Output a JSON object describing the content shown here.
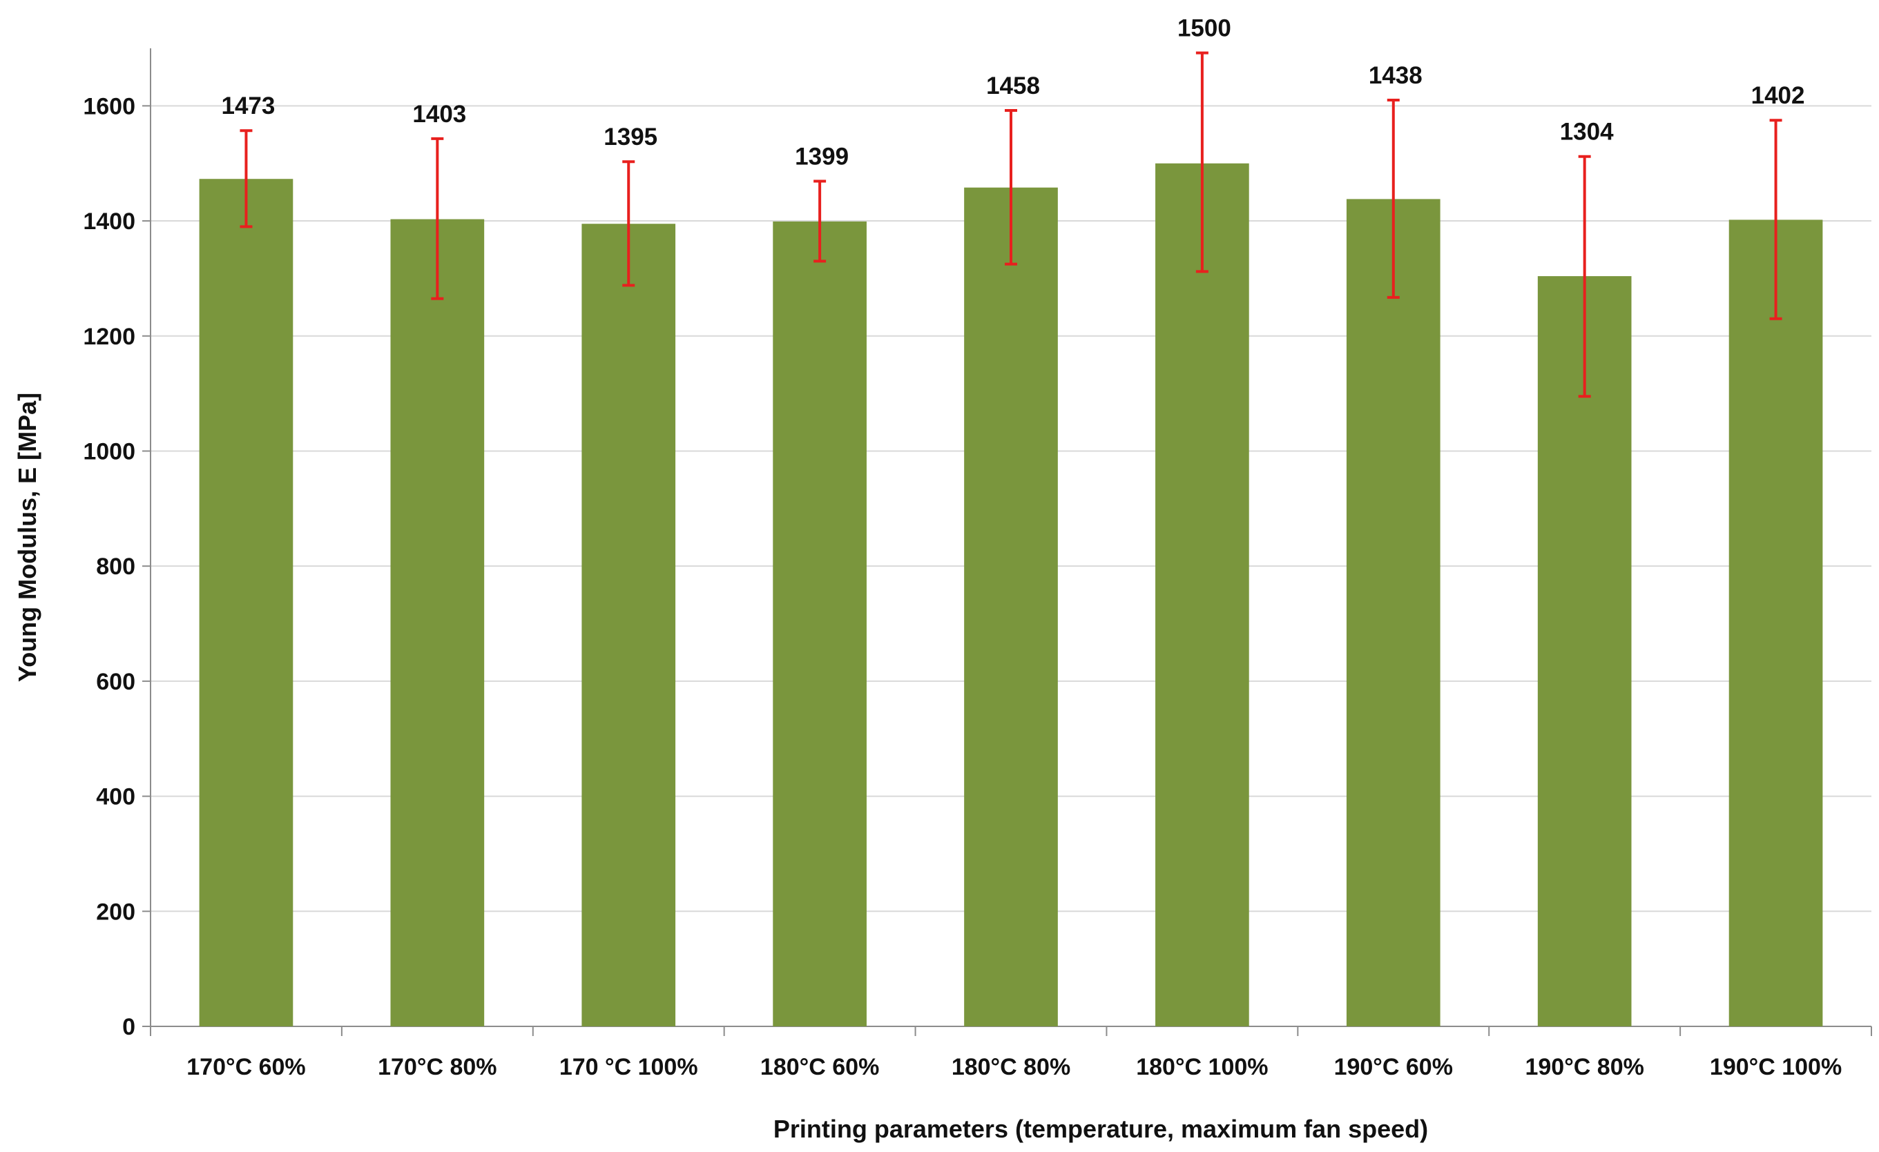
{
  "chart_data": {
    "type": "bar",
    "categories": [
      "170°C 60%",
      "170°C 80%",
      "170 °C 100%",
      "180°C 60%",
      "180°C 80%",
      "180°C 100%",
      "190°C 60%",
      "190°C 80%",
      "190°C 100%"
    ],
    "values": [
      1473,
      1403,
      1395,
      1399,
      1458,
      1500,
      1438,
      1304,
      1402
    ],
    "error_bars": {
      "lower": [
        1390,
        1265,
        1288,
        1330,
        1325,
        1312,
        1267,
        1095,
        1230
      ],
      "upper": [
        1557,
        1543,
        1503,
        1469,
        1592,
        1692,
        1610,
        1512,
        1575
      ]
    },
    "data_labels": [
      "1473",
      "1403",
      "1395",
      "1399",
      "1458",
      "1500",
      "1438",
      "1304",
      "1402"
    ],
    "xlabel": "Printing parameters (temperature, maximum fan speed)",
    "ylabel": "Young Modulus,  E [MPa]",
    "ylim": [
      0,
      1700
    ],
    "yticks": [
      0,
      200,
      400,
      600,
      800,
      1000,
      1200,
      1400,
      1600
    ],
    "grid": true,
    "legend": "none",
    "colors": {
      "bar": "#7a963d",
      "error_bar": "#e8201e",
      "grid": "#d9d9d9",
      "axis": "#8c8c8c"
    }
  }
}
